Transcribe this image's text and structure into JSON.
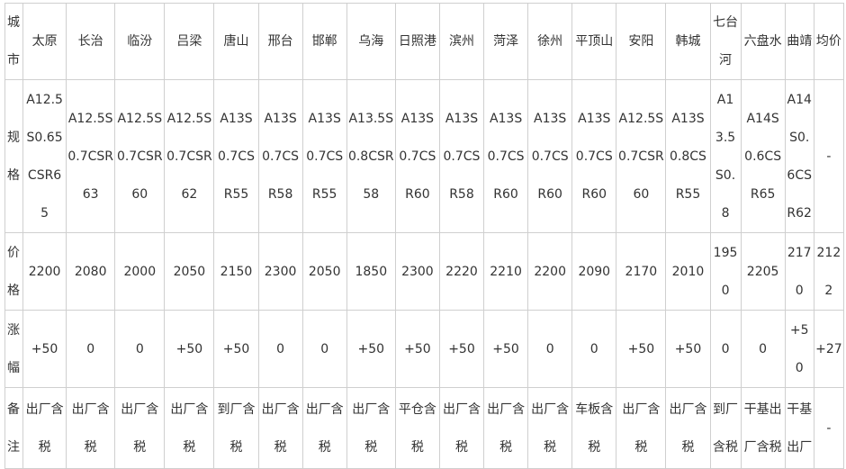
{
  "row_labels": [
    "城市",
    "规格",
    "价格",
    "涨幅",
    "备注"
  ],
  "cities": [
    "太原",
    "长治",
    "临汾",
    "吕梁",
    "唐山",
    "邢台",
    "邯郸",
    "乌海",
    "日照港",
    "滨州",
    "菏泽",
    "徐州",
    "平顶山",
    "安阳",
    "韩城",
    "七台河",
    "六盘水",
    "曲靖",
    "均价"
  ],
  "specs": [
    "A12.5S0.65CSR65",
    "A12.5S0.7CSR63",
    "A12.5S0.7CSR60",
    "A12.5S0.7CSR62",
    "A13S0.7CSR55",
    "A13S0.7CSR58",
    "A13S0.7CSR55",
    "A13.5S0.8CSR58",
    "A13S0.7CSR60",
    "A13S0.7CSR58",
    "A13S0.7CSR60",
    "A13S0.7CSR60",
    "A13S0.7CSR60",
    "A12.5S0.7CSR60",
    "A13S0.8CSR55",
    "A13.5S0.8",
    "A14S0.6CSR65",
    "A14S0.6CSR62",
    "-"
  ],
  "prices": [
    "2200",
    "2080",
    "2000",
    "2050",
    "2150",
    "2300",
    "2050",
    "1850",
    "2300",
    "2220",
    "2210",
    "2200",
    "2090",
    "2170",
    "2010",
    "1950",
    "2205",
    "2170",
    "2122"
  ],
  "changes": [
    "+50",
    "0",
    "0",
    "+50",
    "+50",
    "0",
    "0",
    "+50",
    "+50",
    "+50",
    "+50",
    "0",
    "0",
    "+50",
    "+50",
    "0",
    "0",
    "+50",
    "+27"
  ],
  "remarks": [
    "出厂含税",
    "出厂含税",
    "出厂含税",
    "出厂含税",
    "到厂含税",
    "出厂含税",
    "出厂含税",
    "出厂含税",
    "平仓含税",
    "出厂含税",
    "出厂含税",
    "出厂含税",
    "车板含税",
    "出厂含税",
    "出厂含税",
    "到厂含税",
    "干基出厂含税",
    "干基出厂",
    "-"
  ]
}
